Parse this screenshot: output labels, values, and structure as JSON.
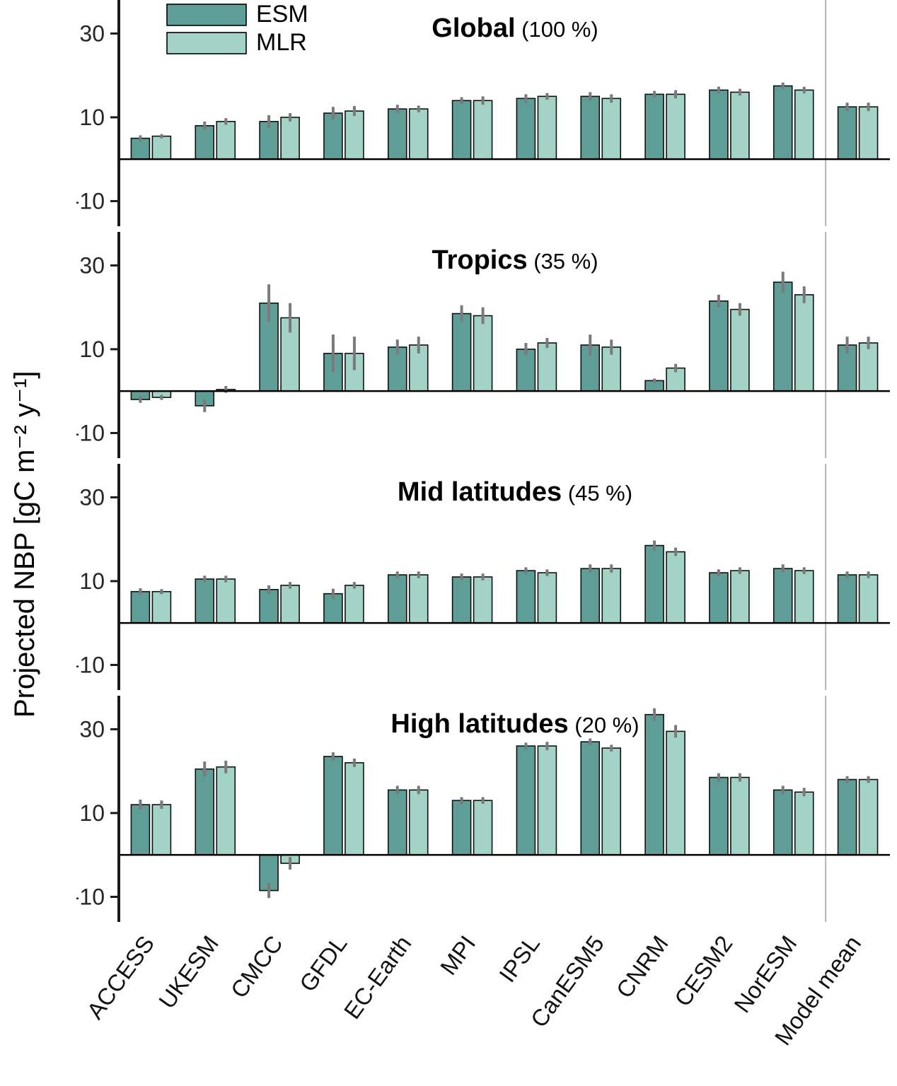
{
  "figure": {
    "ylabel": "Projected NBP [gC m⁻² y⁻¹]",
    "yticks": [
      30,
      10,
      -10
    ],
    "legend": [
      {
        "label": "ESM"
      },
      {
        "label": "MLR"
      }
    ],
    "colors": {
      "esm": "#5f9e97",
      "mlr": "#a3d2c7",
      "error": "#7a7a7a",
      "separator": "#b5b5b5",
      "edge": "#111111",
      "axis": "#1a1a1a",
      "tick_text": "#262626"
    }
  },
  "chart_data": [
    {
      "type": "bar",
      "title": "Global",
      "subtitle": "(100 %)",
      "ylim": [
        -16,
        38
      ],
      "categories": [
        "ACCESS",
        "UKESM",
        "CMCC",
        "GFDL",
        "EC-Earth",
        "MPI",
        "IPSL",
        "CanESM5",
        "CNRM",
        "CESM2",
        "NorESM",
        "Model mean"
      ],
      "series": [
        {
          "name": "ESM",
          "values": [
            5,
            8,
            9,
            11,
            12,
            14,
            14.5,
            15,
            15.5,
            16.5,
            17.5,
            12.5
          ],
          "errors": [
            0.7,
            1,
            1.5,
            1.5,
            1,
            0.8,
            1,
            1,
            0.8,
            0.8,
            0.8,
            1
          ]
        },
        {
          "name": "MLR",
          "values": [
            5.5,
            9,
            10,
            11.5,
            12,
            14,
            15,
            14.5,
            15.5,
            16,
            16.5,
            12.5
          ],
          "errors": [
            0.5,
            0.8,
            1,
            1.2,
            0.8,
            1,
            0.8,
            1,
            1,
            0.8,
            0.8,
            1
          ]
        }
      ]
    },
    {
      "type": "bar",
      "title": "Tropics",
      "subtitle": "(35 %)",
      "ylim": [
        -16,
        38
      ],
      "categories": [
        "ACCESS",
        "UKESM",
        "CMCC",
        "GFDL",
        "EC-Earth",
        "MPI",
        "IPSL",
        "CanESM5",
        "CNRM",
        "CESM2",
        "NorESM",
        "Model mean"
      ],
      "series": [
        {
          "name": "ESM",
          "values": [
            -2,
            -3.5,
            21,
            9,
            10.5,
            18.5,
            10,
            11,
            2.5,
            21.5,
            26,
            11
          ],
          "errors": [
            0.8,
            1.5,
            4.5,
            4.5,
            1.8,
            2,
            1.5,
            2.5,
            0.5,
            1.5,
            2.5,
            2
          ]
        },
        {
          "name": "MLR",
          "values": [
            -1.5,
            0.4,
            17.5,
            9,
            11,
            18,
            11.5,
            10.5,
            5.5,
            19.5,
            23,
            11.5
          ],
          "errors": [
            0.6,
            0.8,
            3.5,
            4,
            2,
            2,
            1.2,
            1.8,
            1,
            1.5,
            2,
            1.5
          ]
        }
      ]
    },
    {
      "type": "bar",
      "title": "Mid latitudes",
      "subtitle": "(45 %)",
      "ylim": [
        -16,
        38
      ],
      "categories": [
        "ACCESS",
        "UKESM",
        "CMCC",
        "GFDL",
        "EC-Earth",
        "MPI",
        "IPSL",
        "CanESM5",
        "CNRM",
        "CESM2",
        "NorESM",
        "Model mean"
      ],
      "series": [
        {
          "name": "ESM",
          "values": [
            7.5,
            10.5,
            8,
            7,
            11.5,
            11,
            12.5,
            13,
            18.5,
            12,
            13,
            11.5
          ],
          "errors": [
            0.8,
            0.8,
            1,
            1.2,
            0.8,
            0.8,
            0.8,
            1,
            1.2,
            0.8,
            1,
            0.8
          ]
        },
        {
          "name": "MLR",
          "values": [
            7.5,
            10.5,
            9,
            9,
            11.5,
            11,
            12,
            13,
            17,
            12.5,
            12.5,
            11.5
          ],
          "errors": [
            0.6,
            0.8,
            0.8,
            0.8,
            0.8,
            0.8,
            0.8,
            1,
            1,
            0.8,
            0.8,
            0.8
          ]
        }
      ]
    },
    {
      "type": "bar",
      "title": "High latitudes",
      "subtitle": "(20 %)",
      "ylim": [
        -16,
        38
      ],
      "categories": [
        "ACCESS",
        "UKESM",
        "CMCC",
        "GFDL",
        "EC-Earth",
        "MPI",
        "IPSL",
        "CanESM5",
        "CNRM",
        "CESM2",
        "NorESM",
        "Model mean"
      ],
      "series": [
        {
          "name": "ESM",
          "values": [
            12,
            20.5,
            -8.5,
            23.5,
            15.5,
            13,
            26,
            27,
            33.5,
            18.5,
            15.5,
            18
          ],
          "errors": [
            1.2,
            1.8,
            1.8,
            1,
            1,
            0.8,
            0.8,
            0.8,
            1.5,
            1,
            1,
            0.8
          ]
        },
        {
          "name": "MLR",
          "values": [
            12,
            21,
            -2,
            22,
            15.5,
            13,
            26,
            25.5,
            29.5,
            18.5,
            15,
            18
          ],
          "errors": [
            1,
            1.5,
            1.5,
            1,
            1,
            0.8,
            1,
            0.8,
            1.5,
            1,
            1,
            0.8
          ]
        }
      ]
    }
  ]
}
